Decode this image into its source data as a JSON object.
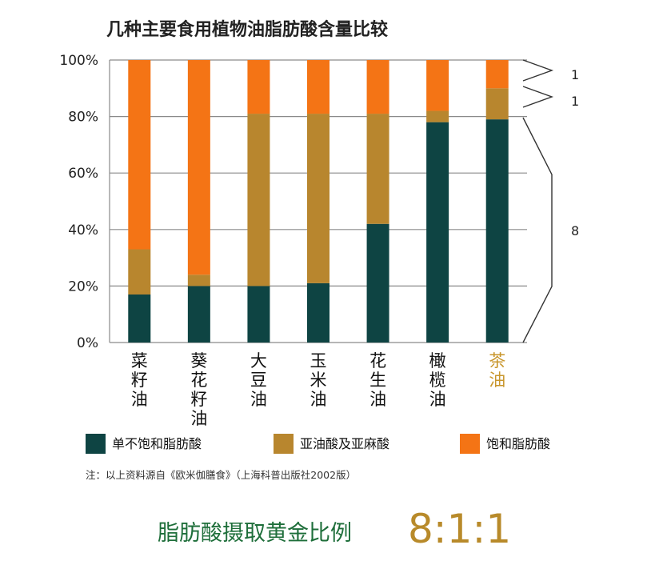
{
  "chart_data": {
    "type": "bar",
    "stacked": true,
    "title": "几种主要食用植物油脂肪酸含量比较",
    "categories": [
      "菜籽油",
      "葵花籽油",
      "大豆油",
      "玉米油",
      "花生油",
      "橄榄油",
      "茶油"
    ],
    "highlight_category": "茶油",
    "yticks": [
      "0%",
      "20%",
      "40%",
      "60%",
      "80%",
      "100%"
    ],
    "ylim": [
      0,
      100
    ],
    "grid": true,
    "legend_position": "bottom",
    "series": [
      {
        "name": "单不饱和脂肪酸",
        "color": "#0e4443",
        "values": [
          17,
          20,
          20,
          21,
          42,
          78,
          79
        ]
      },
      {
        "name": "亚油酸及亚麻酸",
        "color": "#b8862e",
        "values": [
          16,
          4,
          61,
          60,
          39,
          4,
          11
        ]
      },
      {
        "name": "饱和脂肪酸",
        "color": "#f47415",
        "values": [
          67,
          76,
          19,
          19,
          19,
          18,
          10
        ]
      }
    ],
    "ratio_labels": [
      "1",
      "1",
      "8"
    ]
  },
  "note": "注：以上资料源自《欧米伽膳食》（上海科普出版社2002版）",
  "golden": {
    "label": "脂肪酸摄取黄金比例",
    "value": "8:1:1"
  },
  "colors": {
    "highlight_text": "#c8962c",
    "golden_label": "#1e6e3a",
    "golden_value": "#b88a2a"
  }
}
